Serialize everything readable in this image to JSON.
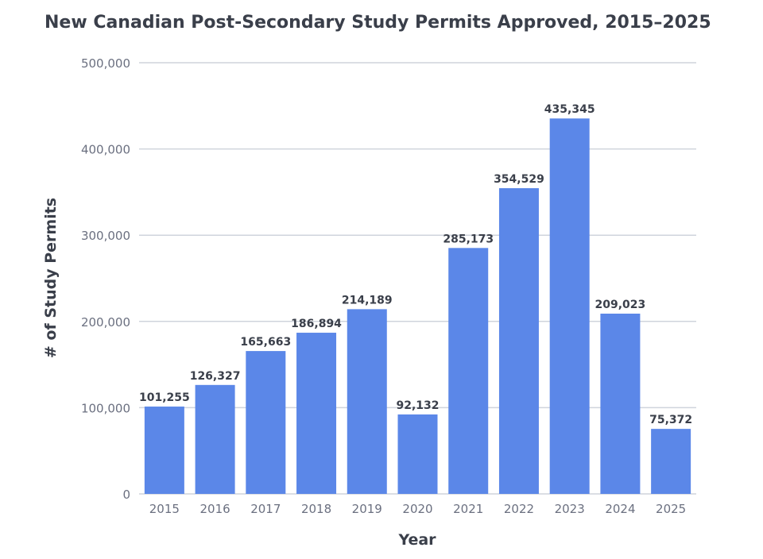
{
  "chart_data": {
    "type": "bar",
    "title": "New Canadian Post-Secondary Study Permits Approved, 2015–2025",
    "xlabel": "Year",
    "ylabel": "# of Study Permits",
    "categories": [
      "2015",
      "2016",
      "2017",
      "2018",
      "2019",
      "2020",
      "2021",
      "2022",
      "2023",
      "2024",
      "2025"
    ],
    "values": [
      101255,
      126327,
      165663,
      186894,
      214189,
      92132,
      285173,
      354529,
      435345,
      209023,
      75372
    ],
    "data_labels": [
      "101,255",
      "126,327",
      "165,663",
      "186,894",
      "214,189",
      "92,132",
      "285,173",
      "354,529",
      "435,345",
      "209,023",
      "75,372"
    ],
    "yticks": [
      0,
      100000,
      200000,
      300000,
      400000,
      500000
    ],
    "ytick_labels": [
      "0",
      "100,000",
      "200,000",
      "300,000",
      "400,000",
      "500,000"
    ],
    "ylim": [
      0,
      500000
    ],
    "grid": true,
    "legend": "none",
    "colors": {
      "bar": "#5b87e8",
      "grid": "#cfd4dc",
      "text": "#3a3f4a",
      "tick": "#6b7080"
    }
  }
}
